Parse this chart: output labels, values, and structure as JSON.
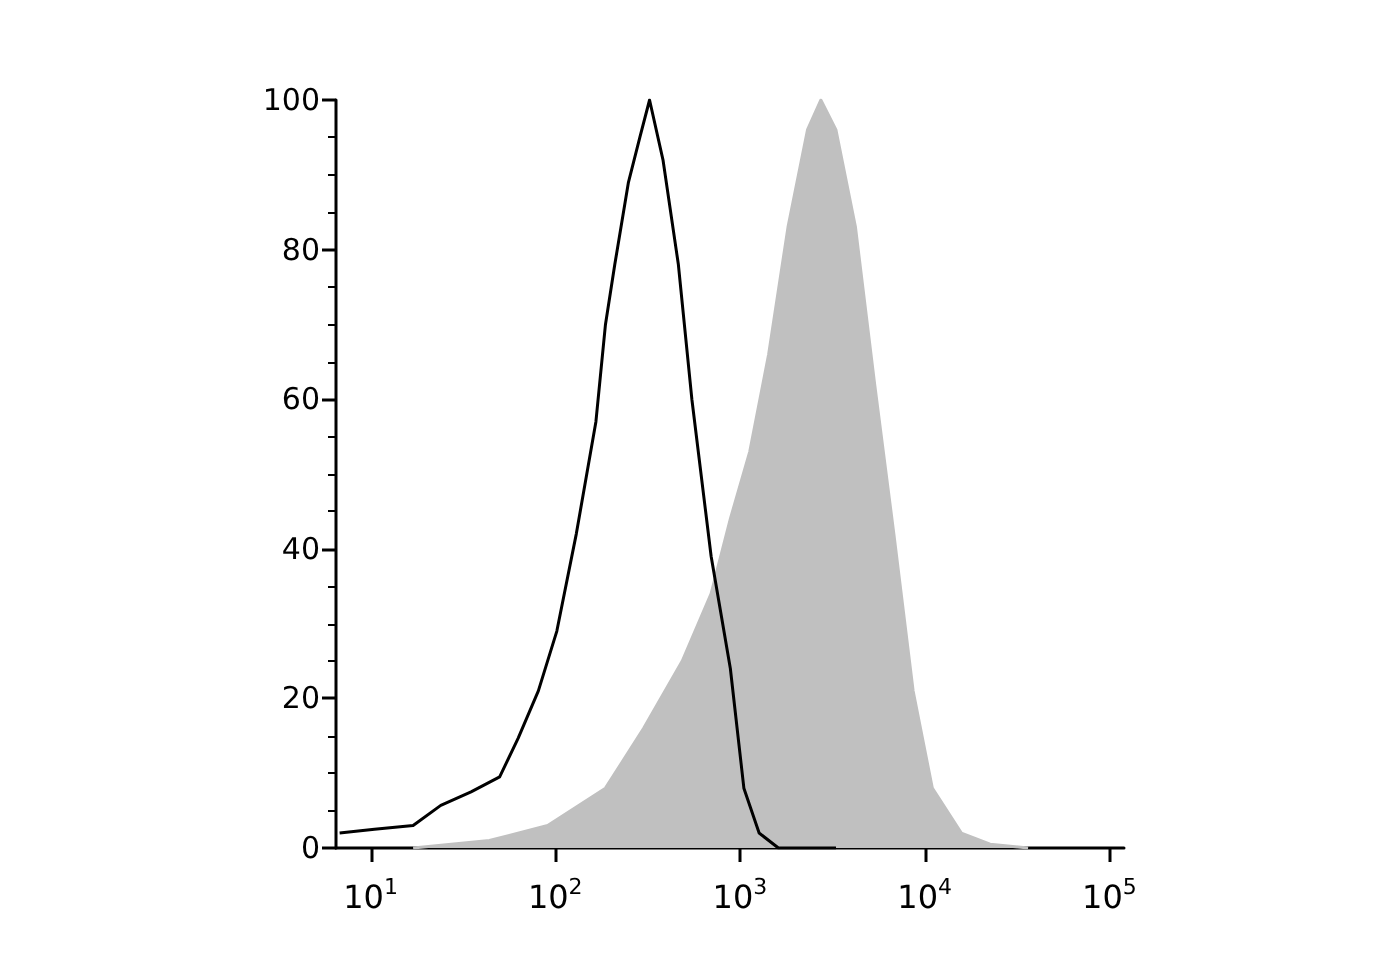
{
  "chart_data": {
    "type": "line",
    "log": "x",
    "xlim": [
      6.5,
      120000
    ],
    "xticks": [
      {
        "value": 10,
        "label": "10$^{1}$"
      },
      {
        "value": 100,
        "label": "10$^{2}$"
      },
      {
        "value": 1000,
        "label": "10$^{3}$"
      },
      {
        "value": 10000,
        "label": "10$^{4}$"
      },
      {
        "value": 100000,
        "label": "10$^{5}$"
      }
    ],
    "ylim": [
      0,
      100
    ],
    "yticks": [
      0,
      20,
      40,
      60,
      80,
      100
    ],
    "grid": false,
    "marker": "none",
    "series": [
      {
        "type": "area",
        "color": "#c0c0c0",
        "x": [
          17,
          44,
          91,
          187,
          301,
          487,
          698,
          887,
          1130,
          1430,
          1820,
          2320,
          2740,
          3310,
          4220,
          5360,
          6810,
          8660,
          11000,
          15800,
          22600,
          36300
        ],
        "values": [
          0,
          1,
          3,
          8,
          16,
          25,
          34,
          44,
          53,
          66,
          83,
          96,
          100,
          96,
          83,
          62,
          42,
          21,
          8,
          2,
          0.5,
          0
        ]
      },
      {
        "color": "#000000",
        "x": [
          6.8,
          10.5,
          17,
          24,
          35,
          50,
          63,
          81,
          102,
          130,
          166,
          187,
          210,
          249,
          287,
          324,
          383,
          464,
          549,
          698,
          887,
          1050,
          1270,
          1615,
          3310
        ],
        "values": [
          2,
          2.5,
          3,
          5.7,
          7.5,
          9.5,
          14.7,
          21,
          29,
          42,
          57,
          70,
          78,
          89,
          95,
          100,
          92,
          78,
          60,
          39,
          24,
          8,
          2,
          0,
          0
        ]
      }
    ]
  }
}
